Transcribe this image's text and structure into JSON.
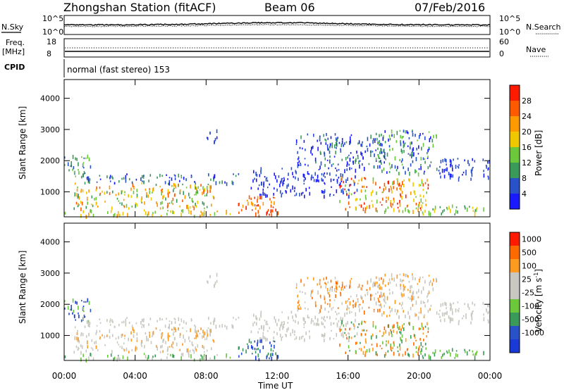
{
  "header": {
    "title": "Zhongshan Station (fitACF)",
    "beam": "Beam 06",
    "date": "07/Feb/2016"
  },
  "noise_panel": {
    "left_label": "N.Sky",
    "right_label": "N.Search",
    "left_ticks": [
      "10^5",
      "10^0"
    ],
    "right_ticks": [
      "10^5",
      "10^0"
    ]
  },
  "freq_panel": {
    "left_label_top": "Freq.",
    "left_label_bottom": "[MHz]",
    "left_ticks": [
      "18",
      "8"
    ],
    "right_label": "Nave",
    "right_ticks": [
      "60",
      "0"
    ]
  },
  "cpid": {
    "label": "CPID",
    "text": "normal (fast stereo) 153"
  },
  "colors": {
    "power": [
      "#1a1aff",
      "#2a52c8",
      "#3a9a5a",
      "#6ac83a",
      "#f0c800",
      "#ff9a00",
      "#ff5a00",
      "#ff1a00"
    ],
    "velocity": [
      "#ff1a00",
      "#ff6a00",
      "#ff9a20",
      "#c8c8c0",
      "#c8c8c0",
      "#6ac83a",
      "#3a9a5a",
      "#2a52c8",
      "#1a3ad8"
    ]
  },
  "chart_data": [
    {
      "type": "heatmap",
      "name": "power",
      "ylabel": "Slant Range [km]",
      "y_ticks": [
        "1000",
        "2000",
        "3000",
        "4000"
      ],
      "ylim": [
        200,
        4600
      ],
      "colorbar_label": "Power [dB]",
      "colorbar_ticks": [
        "4",
        "8",
        "12",
        "16",
        "20",
        "24",
        "28"
      ],
      "colorbar_range": [
        0,
        32
      ]
    },
    {
      "type": "heatmap",
      "name": "velocity",
      "ylabel": "Slant Range [km]",
      "y_ticks": [
        "1000",
        "2000",
        "3000",
        "4000"
      ],
      "ylim": [
        200,
        4600
      ],
      "colorbar_label": "Velocity [m s^-1]",
      "colorbar_ticks": [
        "1000",
        "500",
        "100",
        "25",
        "-25",
        "-100",
        "-500",
        "-1000"
      ]
    }
  ],
  "x_axis": {
    "label": "Time UT",
    "ticks": [
      "00:00",
      "04:00",
      "08:00",
      "12:00",
      "16:00",
      "20:00",
      "00:00"
    ],
    "xlim_hours": [
      0,
      24
    ]
  }
}
